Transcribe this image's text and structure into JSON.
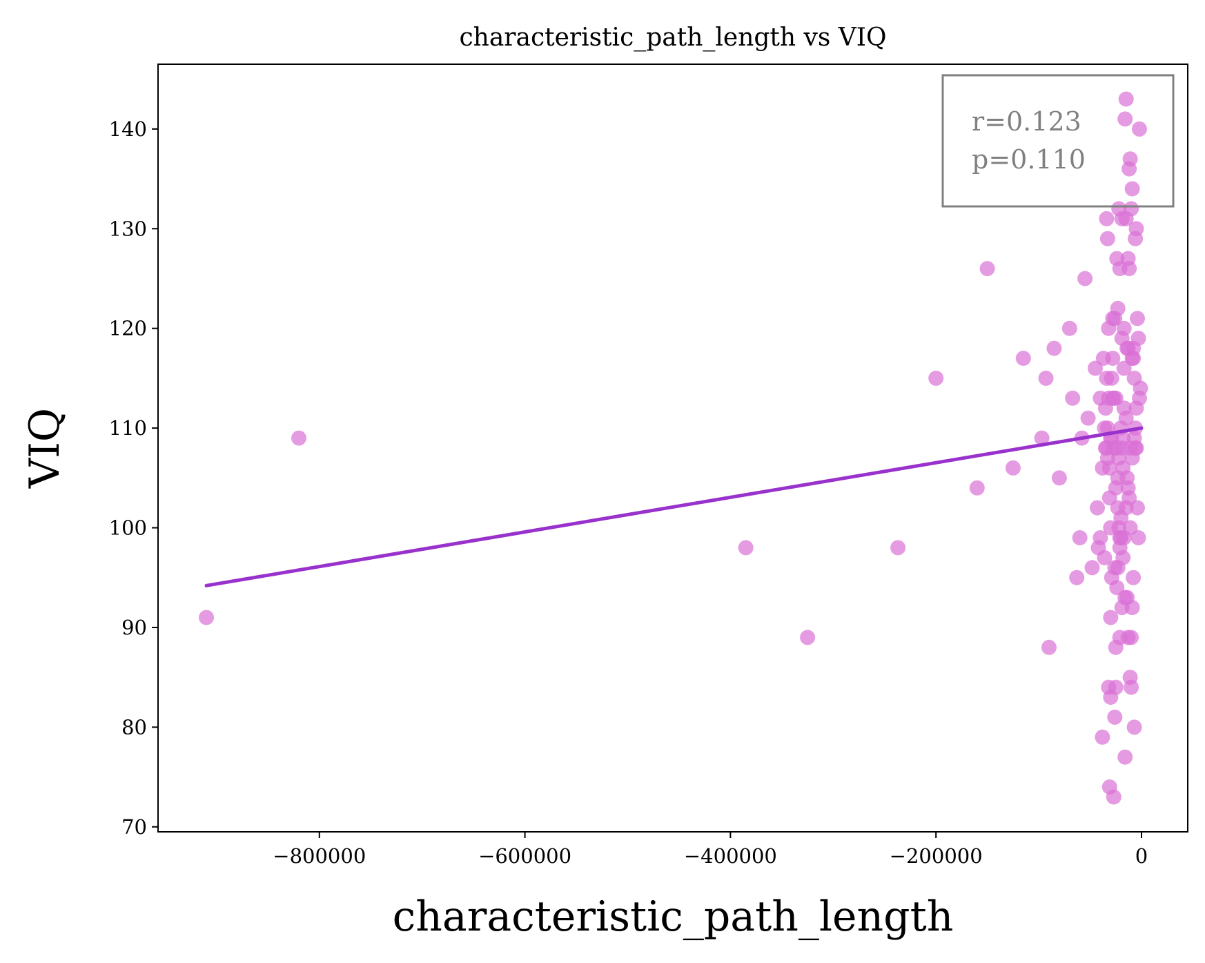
{
  "chart_data": {
    "type": "scatter",
    "title": "characteristic_path_length vs VIQ",
    "xlabel": "characteristic_path_length",
    "ylabel": "VIQ",
    "xlim": [
      -957000,
      45000
    ],
    "ylim": [
      69.5,
      146.5
    ],
    "xticks": [
      -800000,
      -600000,
      -400000,
      -200000,
      0
    ],
    "xtick_labels": [
      "−800000",
      "−600000",
      "−400000",
      "−200000",
      "0"
    ],
    "yticks": [
      70,
      80,
      90,
      100,
      110,
      120,
      130,
      140
    ],
    "ytick_labels": [
      "70",
      "80",
      "90",
      "100",
      "110",
      "120",
      "130",
      "140"
    ],
    "grid": false,
    "annotation": {
      "placement": "top-right",
      "lines": [
        "r=0.123",
        "p=0.110"
      ]
    },
    "colors": {
      "points": "#da70d6",
      "fit_line": "#9932cc",
      "annotation_text": "#808080",
      "annotation_border": "#808080"
    },
    "fit_line": {
      "x": [
        -910000,
        0
      ],
      "y": [
        94.2,
        110.0
      ]
    },
    "series": [
      {
        "points": [
          [
            -910000,
            91
          ],
          [
            -820000,
            109
          ],
          [
            -385000,
            98
          ],
          [
            -325000,
            89
          ],
          [
            -237000,
            98
          ],
          [
            -200000,
            115
          ],
          [
            -160000,
            104
          ],
          [
            -150000,
            126
          ],
          [
            -125000,
            106
          ],
          [
            -115000,
            117
          ],
          [
            -97000,
            109
          ],
          [
            -93000,
            115
          ],
          [
            -90000,
            88
          ],
          [
            -85000,
            118
          ],
          [
            -80000,
            105
          ],
          [
            -70000,
            120
          ],
          [
            -67000,
            113
          ],
          [
            -63000,
            95
          ],
          [
            -60000,
            99
          ],
          [
            -58000,
            109
          ],
          [
            -55000,
            125
          ],
          [
            -52000,
            111
          ],
          [
            -48000,
            96
          ],
          [
            -45000,
            116
          ],
          [
            -43000,
            102
          ],
          [
            -42000,
            98
          ],
          [
            -40000,
            113
          ],
          [
            -38000,
            79
          ],
          [
            -37000,
            117
          ],
          [
            -35000,
            108
          ],
          [
            -34000,
            131
          ],
          [
            -33000,
            129
          ],
          [
            -32000,
            120
          ],
          [
            -31000,
            74
          ],
          [
            -30000,
            91
          ],
          [
            -30000,
            83
          ],
          [
            -29000,
            109
          ],
          [
            -28000,
            117
          ],
          [
            -27000,
            113
          ],
          [
            -26000,
            81
          ],
          [
            -25000,
            88
          ],
          [
            -24000,
            94
          ],
          [
            -23000,
            102
          ],
          [
            -22000,
            107
          ],
          [
            -21000,
            126
          ],
          [
            -20000,
            99
          ],
          [
            -19000,
            92
          ],
          [
            -18000,
            97
          ],
          [
            -17000,
            112
          ],
          [
            -16000,
            77
          ],
          [
            -15000,
            131
          ],
          [
            -14000,
            93
          ],
          [
            -13000,
            104
          ],
          [
            -12000,
            103
          ],
          [
            -11000,
            85
          ],
          [
            -10000,
            89
          ],
          [
            -9000,
            117
          ],
          [
            -8000,
            95
          ],
          [
            -7000,
            80
          ],
          [
            -6000,
            108
          ],
          [
            -5000,
            112
          ],
          [
            -4000,
            102
          ],
          [
            -3000,
            99
          ],
          [
            -2000,
            113
          ],
          [
            -1000,
            114
          ],
          [
            -36000,
            97
          ],
          [
            -34000,
            115
          ],
          [
            -33000,
            107
          ],
          [
            -32000,
            84
          ],
          [
            -31000,
            103
          ],
          [
            -30000,
            100
          ],
          [
            -29000,
            95
          ],
          [
            -28000,
            113
          ],
          [
            -27000,
            73
          ],
          [
            -26000,
            121
          ],
          [
            -25000,
            84
          ],
          [
            -24000,
            127
          ],
          [
            -23000,
            122
          ],
          [
            -22000,
            100
          ],
          [
            -21000,
            89
          ],
          [
            -20000,
            110
          ],
          [
            -19000,
            131
          ],
          [
            -18000,
            106
          ],
          [
            -17000,
            120
          ],
          [
            -16000,
            141
          ],
          [
            -15000,
            143
          ],
          [
            -14000,
            118
          ],
          [
            -13000,
            127
          ],
          [
            -12000,
            126
          ],
          [
            -11000,
            108
          ],
          [
            -10000,
            132
          ],
          [
            -9000,
            107
          ],
          [
            -8000,
            118
          ],
          [
            -7000,
            109
          ],
          [
            -6000,
            129
          ],
          [
            -5000,
            130
          ],
          [
            -4000,
            121
          ],
          [
            -3000,
            119
          ],
          [
            -2000,
            140
          ],
          [
            -35000,
            112
          ],
          [
            -33000,
            110
          ],
          [
            -31000,
            106
          ],
          [
            -29000,
            115
          ],
          [
            -27000,
            108
          ],
          [
            -25000,
            104
          ],
          [
            -23000,
            96
          ],
          [
            -21000,
            98
          ],
          [
            -19000,
            119
          ],
          [
            -17000,
            99
          ],
          [
            -15000,
            102
          ],
          [
            -13000,
            118
          ],
          [
            -11000,
            137
          ],
          [
            -9000,
            134
          ],
          [
            -7000,
            115
          ],
          [
            -5000,
            108
          ],
          [
            -12000,
            136
          ],
          [
            -14000,
            105
          ],
          [
            -16000,
            93
          ],
          [
            -18000,
            109
          ],
          [
            -20000,
            101
          ],
          [
            -22000,
            132
          ],
          [
            -24000,
            108
          ],
          [
            -26000,
            96
          ],
          [
            -28000,
            121
          ],
          [
            -30000,
            109
          ],
          [
            -32000,
            113
          ],
          [
            -34000,
            108
          ],
          [
            -36000,
            110
          ],
          [
            -38000,
            106
          ],
          [
            -40000,
            99
          ],
          [
            -10000,
            84
          ],
          [
            -8000,
            117
          ],
          [
            -6000,
            110
          ],
          [
            -9000,
            92
          ],
          [
            -11000,
            100
          ],
          [
            -13000,
            89
          ],
          [
            -15000,
            111
          ],
          [
            -17000,
            116
          ],
          [
            -19000,
            108
          ],
          [
            -21000,
            99
          ],
          [
            -23000,
            105
          ],
          [
            -25000,
            113
          ]
        ]
      }
    ]
  }
}
